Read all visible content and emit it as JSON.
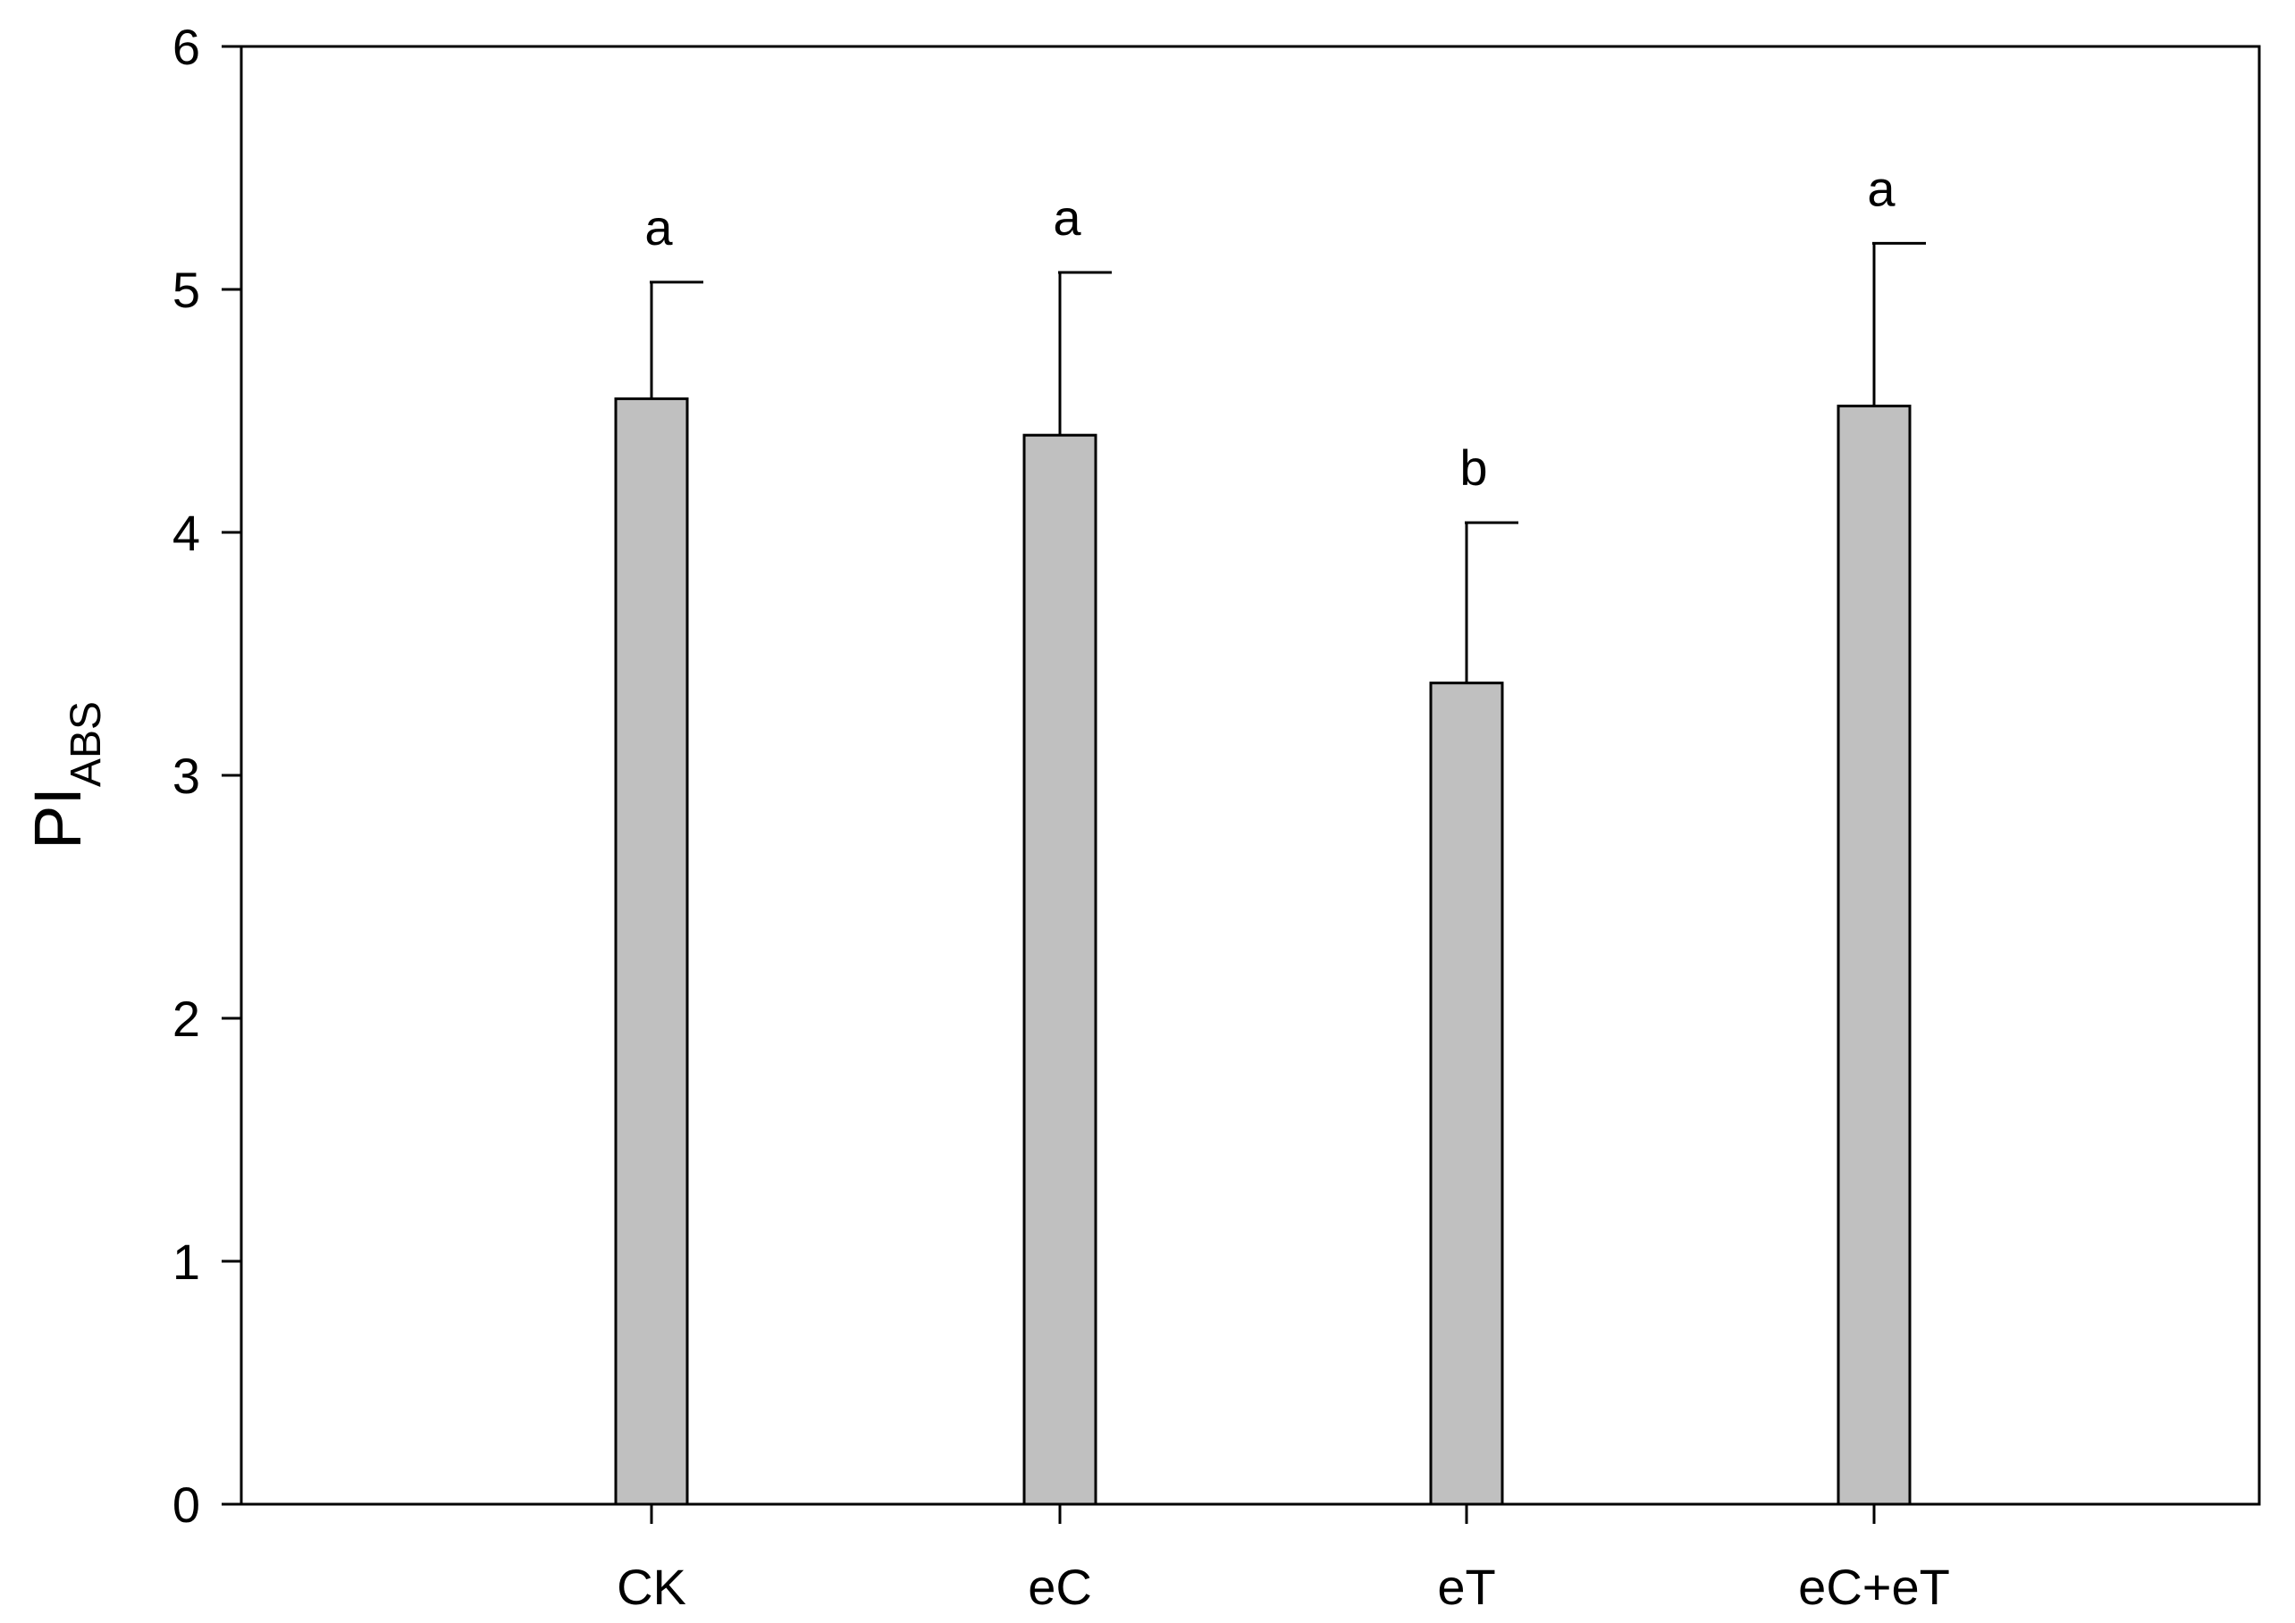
{
  "chart_data": {
    "type": "bar",
    "categories": [
      "CK",
      "eC",
      "eT",
      "eC+eT"
    ],
    "series": [
      {
        "values": [
          4.55,
          4.4,
          3.38,
          4.52
        ],
        "error_plus": [
          0.48,
          0.67,
          0.66,
          0.67
        ]
      }
    ],
    "significance_letters": [
      "a",
      "a",
      "b",
      "a"
    ],
    "ylabel": {
      "main": "PI",
      "subscript": "ABS"
    },
    "xlabel": "",
    "title": "",
    "ylim": [
      0,
      6
    ],
    "yticks": [
      "0",
      "1",
      "2",
      "3",
      "4",
      "5",
      "6"
    ],
    "bar_color": "#c0c0c0",
    "grid": false,
    "legend": "none"
  }
}
